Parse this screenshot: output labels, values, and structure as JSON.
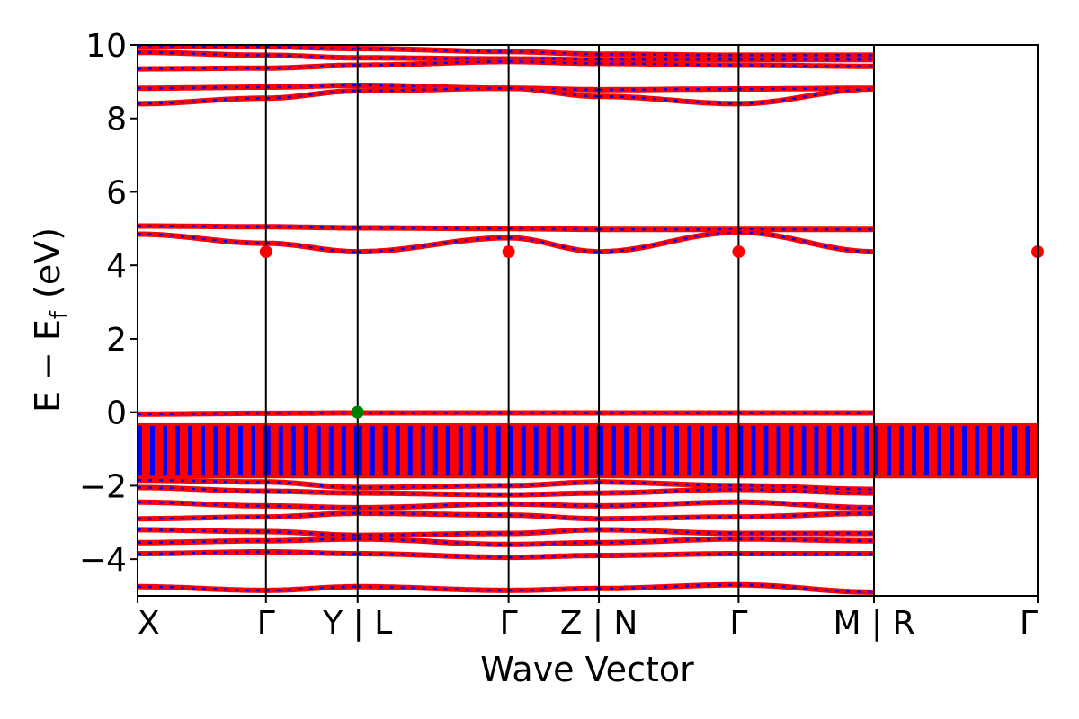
{
  "chart_data": {
    "type": "line",
    "xlabel": "Wave Vector",
    "ylabel": "E − E_f (eV)",
    "ylabel_parts": {
      "e": "E",
      "minus": "−",
      "ef": "E",
      "sub": "f",
      "unit": "(eV)"
    },
    "ylim": [
      -5,
      10
    ],
    "yticks": [
      {
        "value": -4,
        "label": "−4"
      },
      {
        "value": -2,
        "label": "−2"
      },
      {
        "value": 0,
        "label": "0"
      },
      {
        "value": 2,
        "label": "2"
      },
      {
        "value": 4,
        "label": "4"
      },
      {
        "value": 6,
        "label": "6"
      },
      {
        "value": 8,
        "label": "8"
      },
      {
        "value": 10,
        "label": "10"
      }
    ],
    "x_range": [
      0,
      6.38
    ],
    "segments": [
      {
        "from": "X",
        "to": "Γ",
        "x": [
          0.0,
          0.91
        ]
      },
      {
        "from": "Γ",
        "to": "Y",
        "x": [
          0.91,
          1.56
        ]
      },
      {
        "from": "L",
        "to": "Γ",
        "x": [
          1.56,
          2.63
        ]
      },
      {
        "from": "Γ",
        "to": "Z",
        "x": [
          2.63,
          3.27
        ]
      },
      {
        "from": "N",
        "to": "Γ",
        "x": [
          3.27,
          4.26
        ]
      },
      {
        "from": "Γ",
        "to": "M",
        "x": [
          4.26,
          5.22
        ]
      },
      {
        "from": "R",
        "to": "Γ",
        "x": [
          5.22,
          6.38
        ]
      }
    ],
    "kpoint_labels": [
      {
        "x": 0.0,
        "label": "X",
        "align": "start"
      },
      {
        "x": 0.91,
        "label": "Γ",
        "align": "middle"
      },
      {
        "x": 1.56,
        "label": "Y | L",
        "align": "middle"
      },
      {
        "x": 2.63,
        "label": "Γ",
        "align": "middle"
      },
      {
        "x": 3.27,
        "label": "Z | N",
        "align": "middle"
      },
      {
        "x": 4.26,
        "label": "Γ",
        "align": "middle"
      },
      {
        "x": 5.22,
        "label": "M | R",
        "align": "middle"
      },
      {
        "x": 6.38,
        "label": "Γ",
        "align": "end"
      }
    ],
    "band_style": {
      "color_primary": "#ff0000",
      "color_secondary": "#0000ff",
      "axis_color": "#000000"
    },
    "series": [
      {
        "values": [
          9.97,
          9.95,
          9.9,
          9.82,
          9.75,
          9.72,
          9.72
        ]
      },
      {
        "values": [
          9.8,
          9.72,
          9.65,
          9.62,
          9.6,
          9.6,
          9.6
        ]
      },
      {
        "values": [
          9.35,
          9.37,
          9.45,
          9.55,
          9.5,
          9.45,
          9.42
        ]
      },
      {
        "values": [
          8.82,
          8.85,
          8.9,
          8.82,
          8.78,
          8.8,
          8.82
        ]
      },
      {
        "values": [
          8.4,
          8.55,
          8.75,
          8.82,
          8.6,
          8.4,
          8.8
        ]
      },
      {
        "values": [
          5.07,
          5.05,
          5.02,
          5.0,
          4.98,
          4.98,
          4.98
        ]
      },
      {
        "values": [
          4.85,
          4.6,
          4.37,
          4.75,
          4.37,
          4.9,
          4.37
        ]
      },
      {
        "values": [
          -0.05,
          -0.03,
          -0.02,
          -0.02,
          -0.02,
          -0.02,
          -0.02
        ]
      },
      {
        "values": [
          -1.85,
          -1.9,
          -2.05,
          -2.0,
          -1.9,
          -2.0,
          -2.1
        ]
      },
      {
        "values": [
          -2.05,
          -2.15,
          -2.2,
          -2.25,
          -2.2,
          -2.1,
          -2.2
        ]
      },
      {
        "values": [
          -2.45,
          -2.55,
          -2.6,
          -2.5,
          -2.55,
          -2.45,
          -2.6
        ]
      },
      {
        "values": [
          -2.9,
          -2.85,
          -2.75,
          -2.8,
          -2.9,
          -2.85,
          -2.75
        ]
      },
      {
        "values": [
          -3.2,
          -3.25,
          -3.35,
          -3.3,
          -3.2,
          -3.3,
          -3.3
        ]
      },
      {
        "values": [
          -3.55,
          -3.5,
          -3.45,
          -3.6,
          -3.55,
          -3.45,
          -3.5
        ]
      },
      {
        "values": [
          -3.85,
          -3.8,
          -3.85,
          -3.95,
          -3.9,
          -3.85,
          -3.85
        ]
      },
      {
        "values": [
          -4.75,
          -4.85,
          -4.75,
          -4.85,
          -4.8,
          -4.7,
          -4.9
        ]
      }
    ],
    "valence_block": {
      "top": -0.3,
      "bottom": -1.8
    },
    "markers": [
      {
        "x": 0.91,
        "y": 4.37,
        "color": "#ff0000"
      },
      {
        "x": 2.63,
        "y": 4.37,
        "color": "#ff0000"
      },
      {
        "x": 4.26,
        "y": 4.37,
        "color": "#ff0000"
      },
      {
        "x": 6.38,
        "y": 4.37,
        "color": "#ff0000"
      },
      {
        "x": 1.56,
        "y": 0.0,
        "color": "#008000"
      }
    ]
  }
}
